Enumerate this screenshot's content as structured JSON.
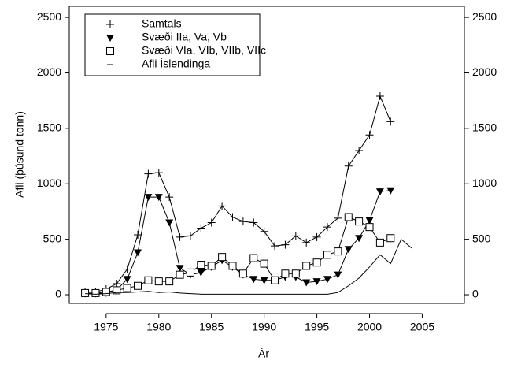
{
  "chart_data": {
    "type": "line",
    "x": [
      1973,
      1974,
      1975,
      1976,
      1977,
      1978,
      1979,
      1980,
      1981,
      1982,
      1983,
      1984,
      1985,
      1986,
      1987,
      1988,
      1989,
      1990,
      1991,
      1992,
      1993,
      1994,
      1995,
      1996,
      1997,
      1998,
      1999,
      2000,
      2001,
      2002,
      2003,
      2004
    ],
    "series": [
      {
        "name": "Samtals",
        "color": "#000000",
        "marker": "plus",
        "values": [
          25,
          25,
          50,
          100,
          230,
          540,
          1090,
          1100,
          880,
          520,
          530,
          600,
          650,
          800,
          700,
          660,
          650,
          570,
          440,
          450,
          530,
          470,
          520,
          610,
          690,
          1160,
          1300,
          1440,
          1790,
          1560,
          null,
          null
        ]
      },
      {
        "name": "Svæði IIa, Va, Vb",
        "color": "#000000",
        "marker": "triangle",
        "values": [
          10,
          10,
          15,
          45,
          140,
          380,
          880,
          880,
          650,
          240,
          180,
          200,
          250,
          310,
          250,
          180,
          140,
          130,
          130,
          160,
          160,
          110,
          120,
          140,
          180,
          410,
          510,
          670,
          930,
          940,
          null,
          null
        ]
      },
      {
        "name": "Svæði VIa, VIb, VIIb, VIIc",
        "color": "#000000",
        "marker": "square",
        "values": [
          15,
          15,
          25,
          40,
          60,
          80,
          130,
          120,
          120,
          180,
          200,
          270,
          260,
          340,
          260,
          190,
          330,
          280,
          130,
          190,
          190,
          260,
          290,
          360,
          390,
          700,
          660,
          610,
          470,
          510,
          null,
          null
        ]
      },
      {
        "name": "Afli Íslendinga",
        "color": "#000000",
        "marker": "none",
        "values": [
          10,
          5,
          10,
          20,
          20,
          25,
          30,
          20,
          25,
          15,
          10,
          5,
          5,
          5,
          5,
          5,
          5,
          5,
          5,
          5,
          5,
          5,
          5,
          5,
          20,
          80,
          150,
          250,
          360,
          280,
          500,
          420
        ]
      }
    ],
    "xlabel": "Ár",
    "ylabel": "Afli (þúsund tonn)",
    "xlim": [
      1971.5,
      2009
    ],
    "xticks": [
      1975,
      1980,
      1985,
      1990,
      1995,
      2000,
      2005
    ],
    "ylim": [
      -78,
      2600
    ],
    "yticks": [
      0,
      500,
      1000,
      1500,
      2000,
      2500
    ],
    "legend": "top-left"
  }
}
